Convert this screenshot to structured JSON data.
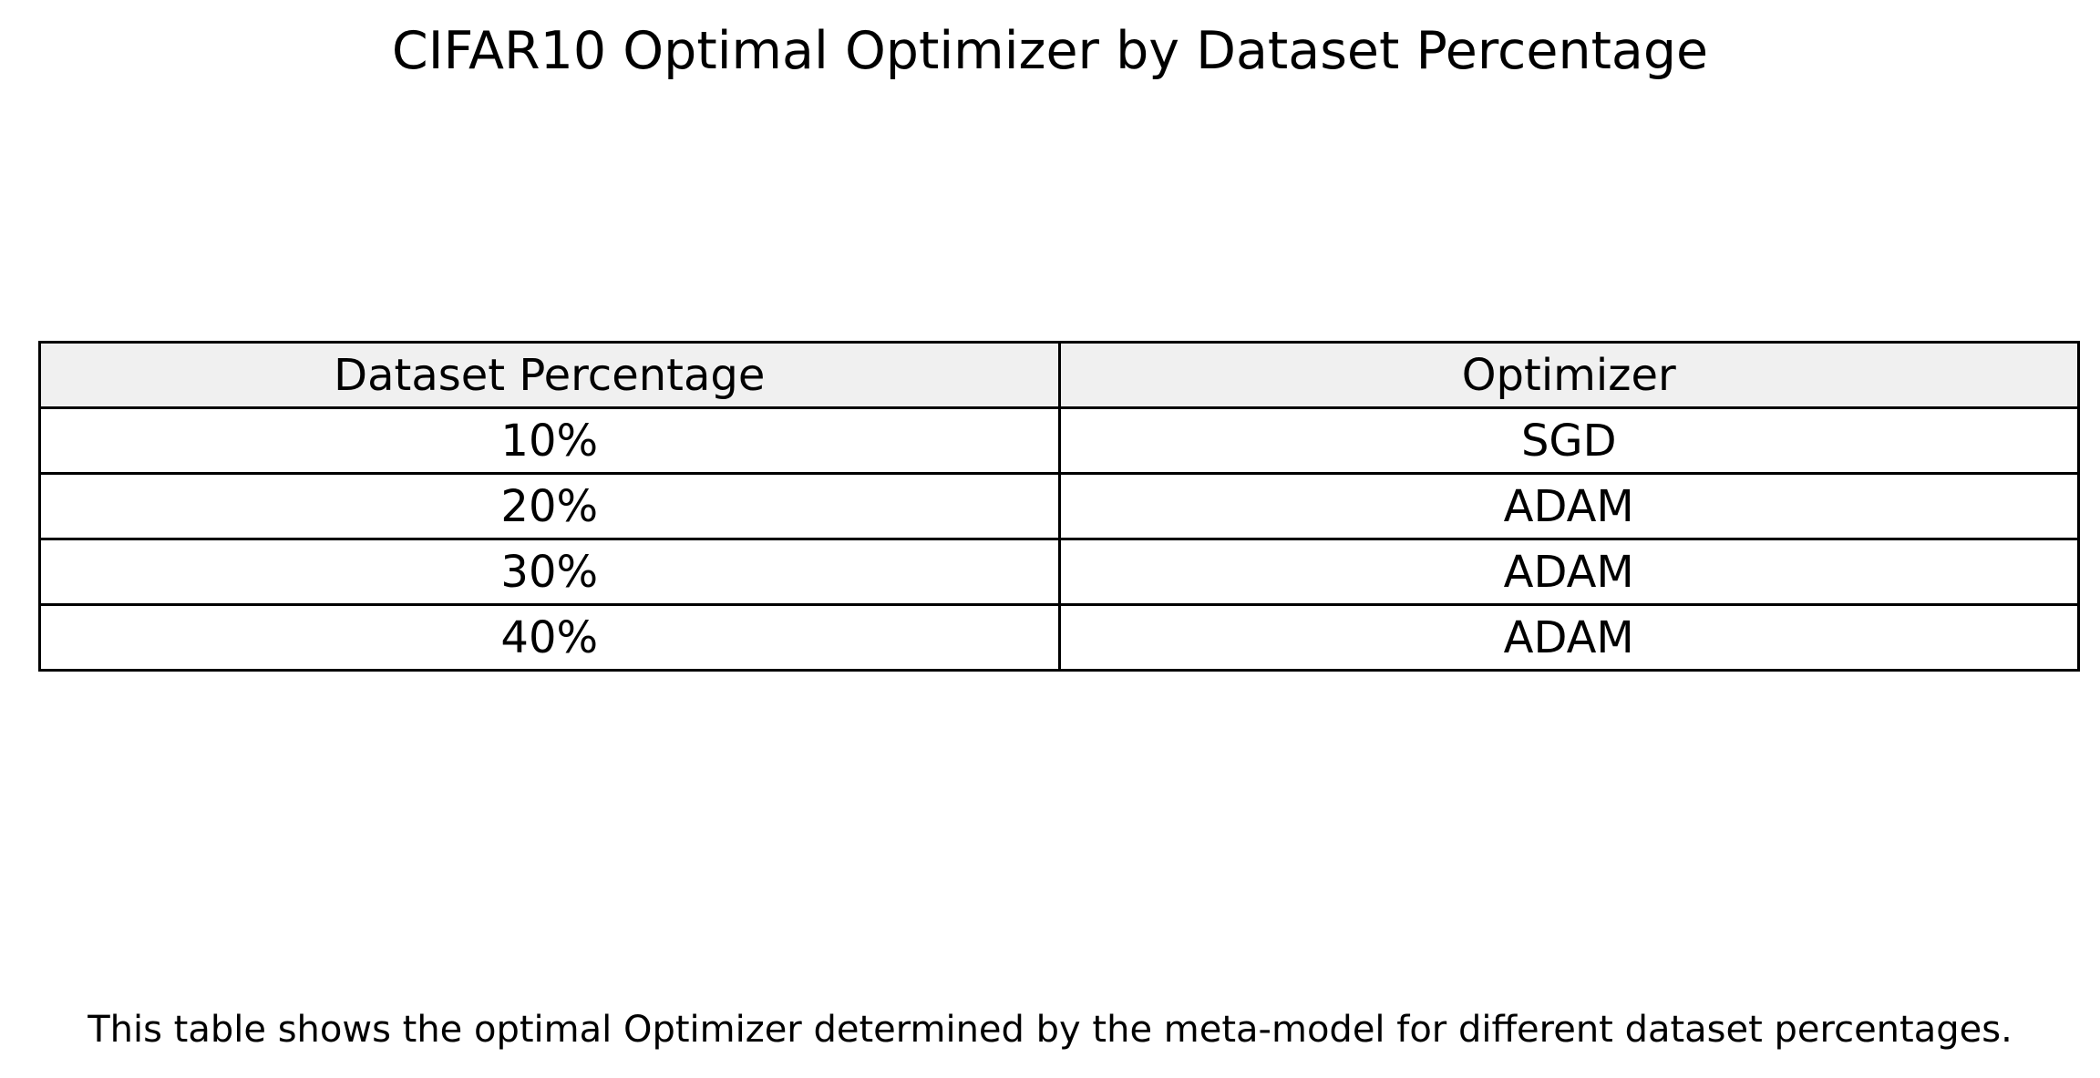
{
  "title": "CIFAR10 Optimal Optimizer by Dataset Percentage",
  "caption": "This table shows the optimal Optimizer determined by the meta-model for different dataset percentages.",
  "colors": {
    "header_background": "#f0f0f0",
    "cell_background": "#ffffff",
    "border": "#000000",
    "text": "#000000"
  },
  "chart_data": {
    "type": "table",
    "title": "CIFAR10 Optimal Optimizer by Dataset Percentage",
    "columns": [
      "Dataset Percentage",
      "Optimizer"
    ],
    "rows": [
      [
        "10%",
        "SGD"
      ],
      [
        "20%",
        "ADAM"
      ],
      [
        "30%",
        "ADAM"
      ],
      [
        "40%",
        "ADAM"
      ]
    ]
  }
}
